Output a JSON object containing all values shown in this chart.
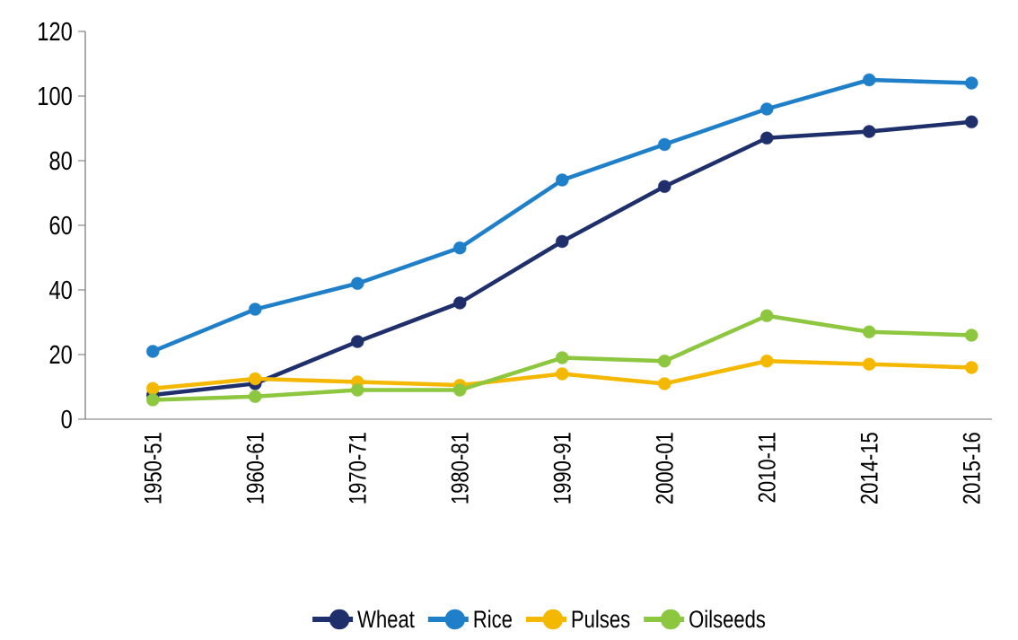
{
  "chart_data": {
    "type": "line",
    "categories": [
      "1950-51",
      "1960-61",
      "1970-71",
      "1980-81",
      "1990-91",
      "2000-01",
      "2010-11",
      "2014-15",
      "2015-16"
    ],
    "series": [
      {
        "name": "Wheat",
        "color": "#1f2f6b",
        "values": [
          7.5,
          11,
          24,
          36,
          55,
          72,
          87,
          89,
          92
        ]
      },
      {
        "name": "Rice",
        "color": "#1f7fc8",
        "values": [
          21,
          34,
          42,
          53,
          74,
          85,
          96,
          105,
          104
        ]
      },
      {
        "name": "Pulses",
        "color": "#f5b800",
        "values": [
          9.5,
          12.5,
          11.5,
          10.5,
          14,
          11,
          18,
          17,
          16
        ]
      },
      {
        "name": "Oilseeds",
        "color": "#8dc63f",
        "values": [
          6,
          7,
          9,
          9,
          19,
          18,
          32,
          27,
          26
        ]
      }
    ],
    "ylim": [
      0,
      120
    ],
    "yticks": [
      0,
      20,
      40,
      60,
      80,
      100,
      120
    ],
    "grid": false,
    "legend": "bottom",
    "marker": "circle",
    "line_style": "solid"
  }
}
